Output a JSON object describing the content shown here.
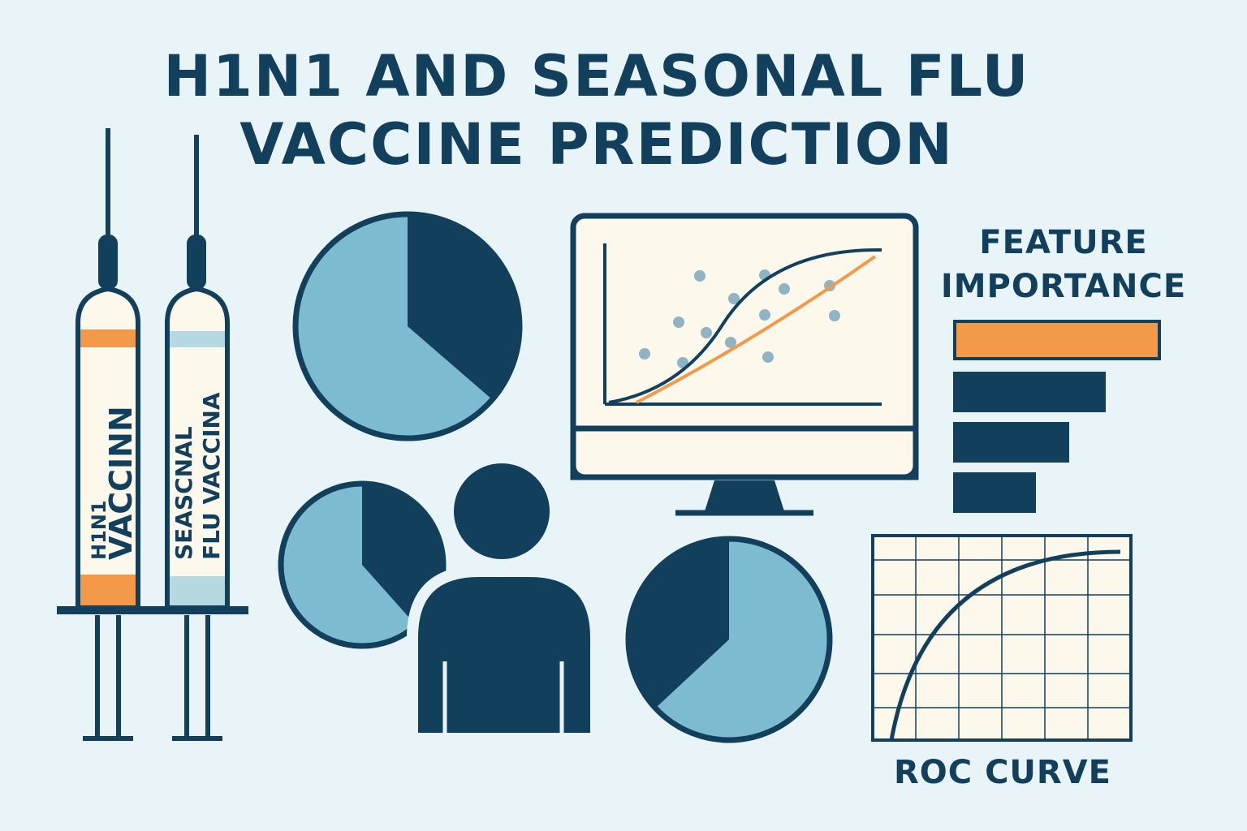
{
  "title": {
    "line1": "H1N1 AND SEASONAL FLU",
    "line2": "VACCINE PREDICTION"
  },
  "syringes": [
    {
      "label_line1": "H1N1",
      "label_line2": "VACCINN",
      "band_color": "#f29a4a"
    },
    {
      "label_line1": "SEASCNAL",
      "label_line2": "FLU VACCINA",
      "band_color": "#b5d8e1"
    }
  ],
  "feature_importance": {
    "title_line1": "FEATURE",
    "title_line2": "IMPORTANCE",
    "bar_values": [
      1.0,
      0.73,
      0.55,
      0.39
    ],
    "bar_colors": [
      "#f29a4a",
      "#123f5c",
      "#123f5c",
      "#123f5c"
    ]
  },
  "roc": {
    "label": "ROC CURVE"
  },
  "icons": [
    "syringe-icon",
    "pie-chart-icon",
    "person-icon",
    "monitor-icon",
    "bar-chart-icon",
    "roc-chart-icon"
  ],
  "colors": {
    "navy": "#123f5c",
    "light_blue": "#7dbcd0",
    "orange": "#f29a4a",
    "cream": "#fdf8ec",
    "background": "#e8f4f7"
  }
}
